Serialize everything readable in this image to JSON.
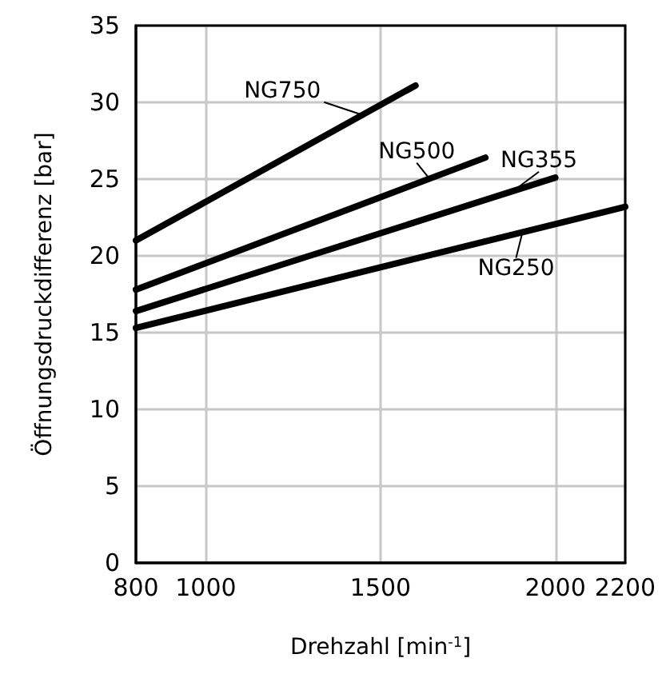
{
  "chart_data": {
    "type": "line",
    "xlabel": "Drehzahl [min$^{-1}$]",
    "ylabel": "Öffnungsdruckdifferenz [bar]",
    "xlim": [
      800,
      2200
    ],
    "xticks": [
      800,
      1000,
      1500,
      2000,
      2200
    ],
    "ylim": [
      0,
      35
    ],
    "yticks": [
      0,
      5,
      10,
      15,
      20,
      25,
      30,
      35
    ],
    "grid": true,
    "marker": "none",
    "line_style": "solid",
    "series": [
      {
        "name": "NG750",
        "color": "#000000",
        "x": [
          800,
          1600
        ],
        "values": [
          21,
          31.1
        ]
      },
      {
        "name": "NG500",
        "color": "#000000",
        "x": [
          800,
          1800
        ],
        "values": [
          17.8,
          26.4
        ]
      },
      {
        "name": "NG355",
        "color": "#000000",
        "x": [
          800,
          2000
        ],
        "values": [
          16.4,
          25.1
        ]
      },
      {
        "name": "NG250",
        "color": "#000000",
        "x": [
          800,
          2200
        ],
        "values": [
          15.3,
          23.2
        ]
      }
    ]
  }
}
